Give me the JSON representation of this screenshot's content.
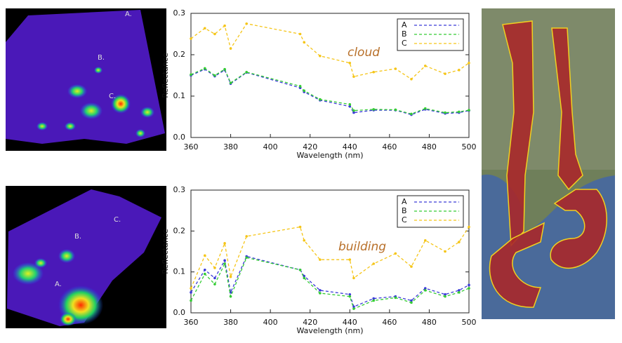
{
  "chart_data": [
    {
      "type": "line",
      "annotation": "cloud",
      "xlabel": "Wavelength (nm)",
      "ylabel": "Reflectance",
      "x": [
        360,
        367,
        372,
        377,
        380,
        388,
        415,
        417,
        425,
        440,
        442,
        452,
        463,
        471,
        478,
        488,
        495,
        500
      ],
      "xlim": [
        360,
        500
      ],
      "xticks": [
        360,
        380,
        400,
        420,
        440,
        460,
        480,
        500
      ],
      "ylim": [
        0,
        0.3
      ],
      "yticks": [
        {
          "value": 0,
          "label": "0.0"
        },
        0.1,
        0.2,
        0.3
      ],
      "legend": "upper right",
      "series": [
        {
          "name": "A",
          "color": "#3a3ad8",
          "values": [
            0.15,
            0.165,
            0.148,
            0.163,
            0.13,
            0.157,
            0.12,
            0.11,
            0.09,
            0.075,
            0.06,
            0.066,
            0.066,
            0.055,
            0.068,
            0.058,
            0.06,
            0.065
          ]
        },
        {
          "name": "B",
          "color": "#33cc33",
          "values": [
            0.152,
            0.167,
            0.15,
            0.165,
            0.132,
            0.158,
            0.124,
            0.113,
            0.092,
            0.08,
            0.065,
            0.068,
            0.067,
            0.057,
            0.07,
            0.06,
            0.062,
            0.066
          ]
        },
        {
          "name": "C",
          "color": "#f5c518",
          "values": [
            0.239,
            0.264,
            0.25,
            0.27,
            0.215,
            0.275,
            0.25,
            0.23,
            0.197,
            0.18,
            0.147,
            0.158,
            0.166,
            0.141,
            0.173,
            0.154,
            0.163,
            0.18
          ]
        }
      ]
    },
    {
      "type": "line",
      "annotation": "building",
      "xlabel": "Wavelength (nm)",
      "ylabel": "Reflectance",
      "x": [
        360,
        367,
        372,
        377,
        380,
        388,
        415,
        417,
        425,
        440,
        442,
        452,
        463,
        471,
        478,
        488,
        495,
        500
      ],
      "xlim": [
        360,
        500
      ],
      "xticks": [
        360,
        380,
        400,
        420,
        440,
        460,
        480,
        500
      ],
      "ylim": [
        0,
        0.3
      ],
      "yticks": [
        {
          "value": 0,
          "label": "0.0"
        },
        0.1,
        0.2,
        0.3
      ],
      "legend": "upper right",
      "series": [
        {
          "name": "A",
          "color": "#3a3ad8",
          "values": [
            0.05,
            0.105,
            0.085,
            0.128,
            0.05,
            0.138,
            0.105,
            0.09,
            0.055,
            0.045,
            0.015,
            0.035,
            0.04,
            0.03,
            0.06,
            0.045,
            0.055,
            0.068
          ]
        },
        {
          "name": "B",
          "color": "#33cc33",
          "values": [
            0.03,
            0.095,
            0.07,
            0.12,
            0.04,
            0.135,
            0.105,
            0.085,
            0.048,
            0.04,
            0.01,
            0.03,
            0.037,
            0.025,
            0.055,
            0.04,
            0.05,
            0.06
          ]
        },
        {
          "name": "C",
          "color": "#f5c518",
          "values": [
            0.06,
            0.14,
            0.11,
            0.17,
            0.088,
            0.187,
            0.21,
            0.177,
            0.13,
            0.13,
            0.085,
            0.12,
            0.145,
            0.113,
            0.177,
            0.15,
            0.173,
            0.21
          ]
        }
      ]
    }
  ],
  "panels": [
    {
      "labels": [
        "A.",
        "B.",
        "C."
      ]
    },
    {
      "labels": [
        "A.",
        "B.",
        "C."
      ]
    }
  ]
}
